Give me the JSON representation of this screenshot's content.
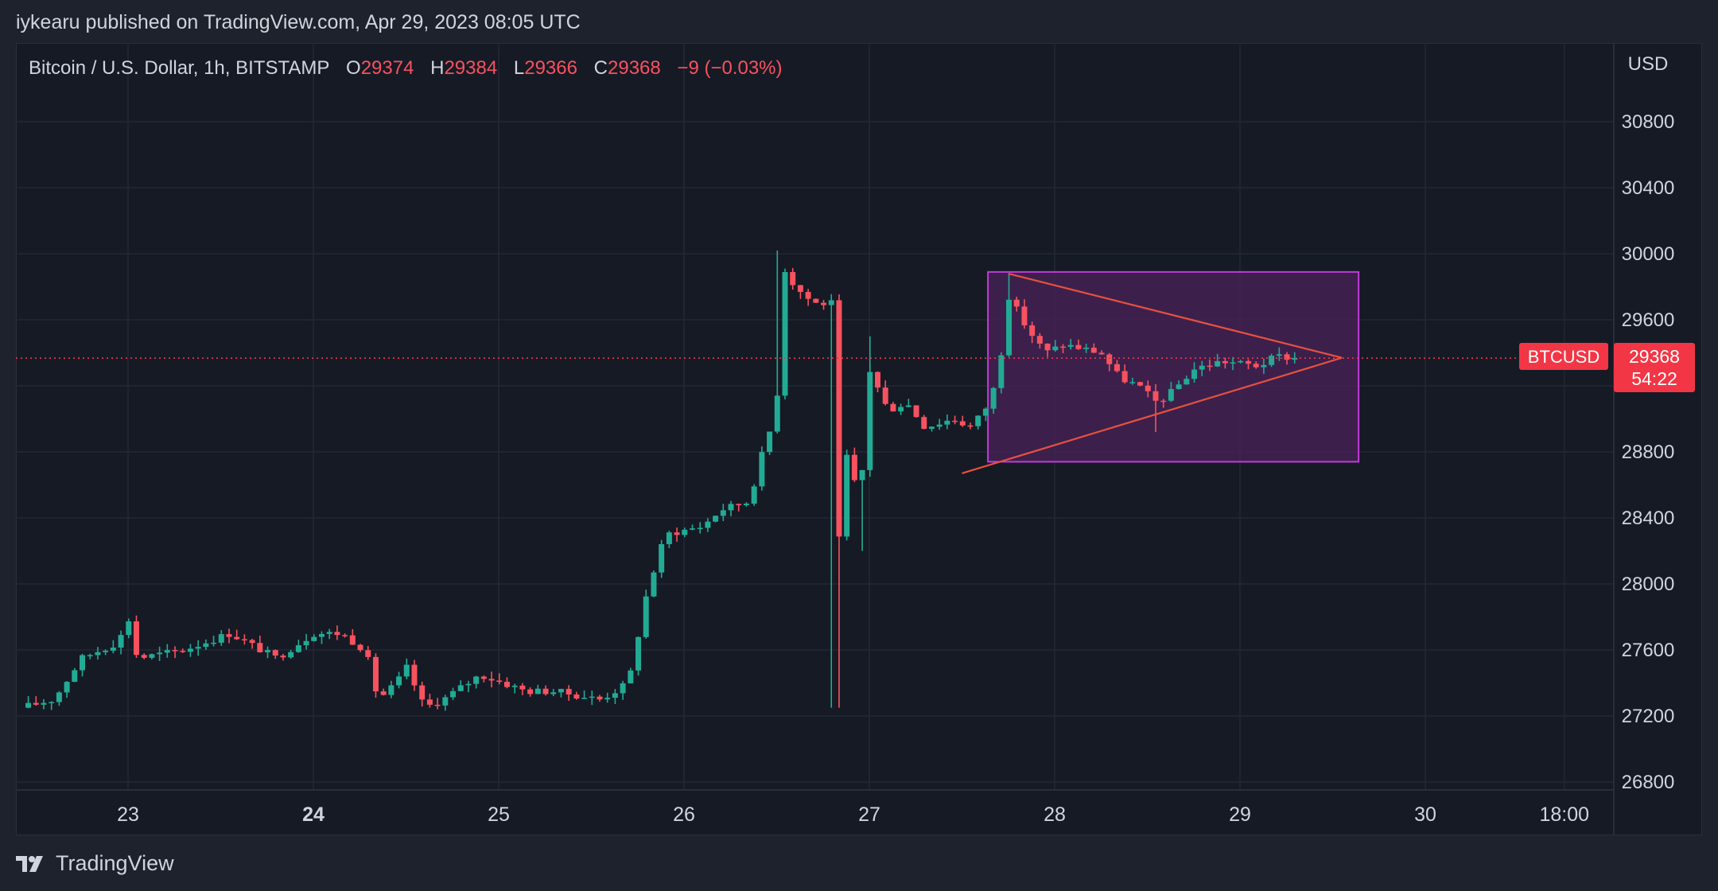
{
  "header": {
    "published_text": "iykearu published on TradingView.com, Apr 29, 2023 08:05 UTC"
  },
  "legend": {
    "symbol_text": "Bitcoin / U.S. Dollar, 1h, BITSTAMP",
    "o_label": "O",
    "o_value": "29374",
    "h_label": "H",
    "h_value": "29384",
    "l_label": "L",
    "l_value": "29366",
    "c_label": "C",
    "c_value": "29368",
    "change": "−9 (−0.03%)"
  },
  "price_axis": {
    "currency": "USD",
    "last_symbol": "BTCUSD",
    "last_price": "29368",
    "countdown": "54:22"
  },
  "footer": {
    "brand": "TradingView"
  },
  "colors": {
    "up": "#22ab94",
    "down": "#f7525f",
    "background": "#161a25",
    "grid": "#232734",
    "box_fill": "#4a2358",
    "box_stroke": "#c13bdc",
    "triangle": "#e8503f",
    "last_price": "#f23645"
  },
  "chart_data": {
    "type": "candlestick",
    "symbol": "BTCUSD",
    "interval": "1h",
    "exchange": "BITSTAMP",
    "y_range": [
      26700,
      31200
    ],
    "y_ticks": [
      26800,
      27200,
      27600,
      28000,
      28400,
      28800,
      29200,
      29600,
      30000,
      30400,
      30800
    ],
    "y_tick_labels": [
      "26800",
      "27200",
      "27600",
      "28000",
      "28400",
      "28800",
      "29200",
      "29600",
      "30000",
      "30400",
      "30800"
    ],
    "x_ticks": [
      {
        "day": 23,
        "label": "23",
        "bold": false
      },
      {
        "day": 24,
        "label": "24",
        "bold": true
      },
      {
        "day": 25,
        "label": "25",
        "bold": false
      },
      {
        "day": 26,
        "label": "26",
        "bold": false
      },
      {
        "day": 27,
        "label": "27",
        "bold": false
      },
      {
        "day": 28,
        "label": "28",
        "bold": false
      },
      {
        "day": 29,
        "label": "29",
        "bold": false
      },
      {
        "day": 30,
        "label": "30",
        "bold": false
      },
      {
        "day": 30.75,
        "label": "18:00",
        "bold": false
      }
    ],
    "x_range": [
      22.4,
      31.0
    ],
    "last_price": 29368,
    "waypoints": [
      [
        22.42,
        27250
      ],
      [
        22.6,
        27300
      ],
      [
        22.75,
        27550
      ],
      [
        22.95,
        27650
      ],
      [
        23.0,
        27800
      ],
      [
        23.05,
        27550
      ],
      [
        23.3,
        27600
      ],
      [
        23.55,
        27700
      ],
      [
        23.8,
        27550
      ],
      [
        24.0,
        27700
      ],
      [
        24.15,
        27700
      ],
      [
        24.28,
        27600
      ],
      [
        24.35,
        27300
      ],
      [
        24.45,
        27400
      ],
      [
        24.5,
        27500
      ],
      [
        24.6,
        27250
      ],
      [
        24.7,
        27300
      ],
      [
        24.9,
        27450
      ],
      [
        25.15,
        27350
      ],
      [
        25.3,
        27350
      ],
      [
        25.55,
        27300
      ],
      [
        25.7,
        27400
      ],
      [
        25.8,
        27950
      ],
      [
        25.9,
        28300
      ],
      [
        26.1,
        28350
      ],
      [
        26.2,
        28450
      ],
      [
        26.35,
        28500
      ],
      [
        26.45,
        28900
      ],
      [
        26.5,
        29000
      ],
      [
        26.52,
        29950
      ],
      [
        26.6,
        29800
      ],
      [
        26.7,
        29700
      ],
      [
        26.8,
        29700
      ],
      [
        26.82,
        28000
      ],
      [
        26.87,
        28800
      ],
      [
        26.95,
        28500
      ],
      [
        27.0,
        29300
      ],
      [
        27.1,
        29050
      ],
      [
        27.2,
        29100
      ],
      [
        27.3,
        28950
      ],
      [
        27.45,
        29000
      ],
      [
        27.55,
        28950
      ],
      [
        27.65,
        29100
      ],
      [
        27.7,
        29300
      ],
      [
        27.75,
        29750
      ],
      [
        27.85,
        29550
      ],
      [
        27.95,
        29400
      ],
      [
        28.05,
        29450
      ],
      [
        28.25,
        29400
      ],
      [
        28.35,
        29250
      ],
      [
        28.45,
        29200
      ],
      [
        28.55,
        29100
      ],
      [
        28.62,
        29150
      ],
      [
        28.75,
        29300
      ],
      [
        28.9,
        29350
      ],
      [
        29.1,
        29320
      ],
      [
        29.2,
        29380
      ],
      [
        29.3,
        29368
      ]
    ],
    "notable_wicks": [
      {
        "day": 26.52,
        "high": 30020
      },
      {
        "day": 26.82,
        "low": 27250
      },
      {
        "day": 26.95,
        "low": 28200
      },
      {
        "day": 27.0,
        "high": 29500
      },
      {
        "day": 27.75,
        "high": 29880
      },
      {
        "day": 28.55,
        "low": 28920
      }
    ],
    "range_box": {
      "day_start": 27.64,
      "day_end": 29.64,
      "price_low": 28740,
      "price_high": 29890
    },
    "triangle": {
      "upper_start": [
        27.75,
        29880
      ],
      "lower_start": [
        27.5,
        28670
      ],
      "apex": [
        29.55,
        29370
      ]
    }
  }
}
